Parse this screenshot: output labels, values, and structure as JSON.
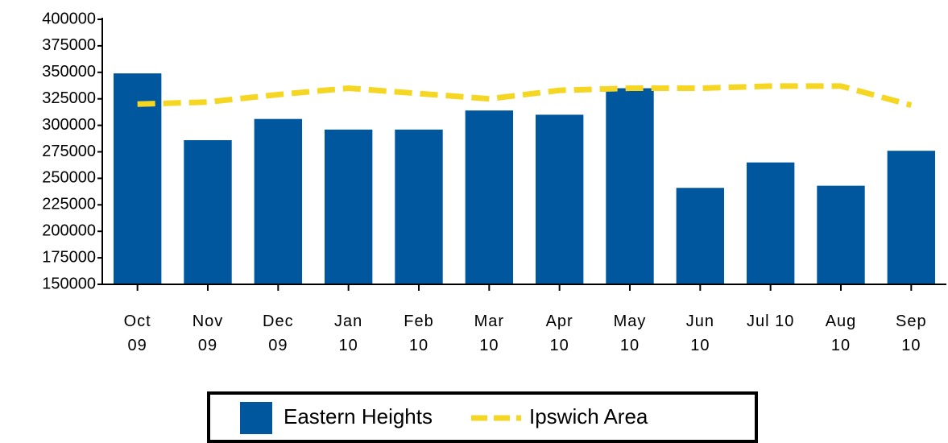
{
  "chart_data": {
    "type": "bar_line",
    "categories": [
      "Oct 09",
      "Nov 09",
      "Dec 09",
      "Jan 10",
      "Feb 10",
      "Mar 10",
      "Apr 10",
      "May 10",
      "Jun 10",
      "Jul 10",
      "Aug 10",
      "Sep 10"
    ],
    "series": [
      {
        "name": "Eastern Heights",
        "type": "bar",
        "color": "#00579e",
        "values": [
          349000,
          286000,
          306000,
          296000,
          296000,
          314000,
          310000,
          335000,
          241000,
          265000,
          243000,
          276000
        ]
      },
      {
        "name": "Ipswich Area",
        "type": "line",
        "color": "#f5d622",
        "dashed": true,
        "values": [
          320000,
          322000,
          329000,
          335000,
          330000,
          325000,
          333000,
          335000,
          335000,
          337000,
          337000,
          319000
        ]
      }
    ],
    "ylim": [
      150000,
      400000
    ],
    "yticks": [
      150000,
      175000,
      200000,
      225000,
      250000,
      275000,
      300000,
      325000,
      350000,
      375000,
      400000
    ],
    "legend": "bottom"
  }
}
